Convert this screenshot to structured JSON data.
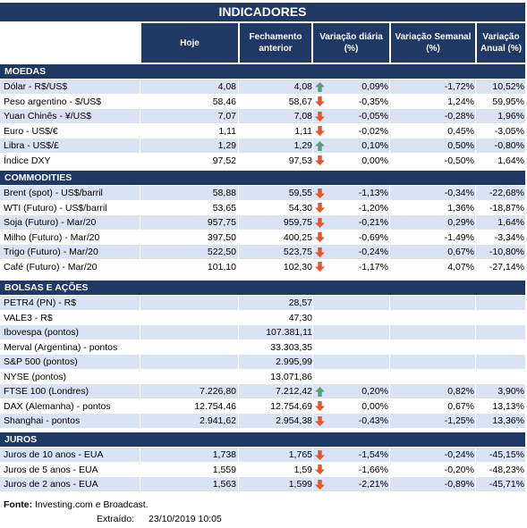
{
  "title": "INDICADORES",
  "headers": {
    "hoje": "Hoje",
    "fech": "Fechamento anterior",
    "dia": "Variação diária (%)",
    "sem": "Variação Semanal (%)",
    "anu": "Variação Anual (%)"
  },
  "sections": {
    "moedas": "MOEDAS",
    "commodities": "COMMODITIES",
    "bolsas": "BOLSAS E AÇÕES",
    "juros": "JUROS"
  },
  "moedas": [
    {
      "name": "Dólar - R$/US$",
      "hoje": "4,08",
      "fech": "4,08",
      "dir": "up",
      "dia": "0,09%",
      "sem": "-1,72%",
      "anu": "10,52%"
    },
    {
      "name": "Peso argentino - $/US$",
      "hoje": "58,46",
      "fech": "58,67",
      "dir": "down",
      "dia": "-0,35%",
      "sem": "1,24%",
      "anu": "59,95%"
    },
    {
      "name": "Yuan Chinês - ¥/US$",
      "hoje": "7,07",
      "fech": "7,08",
      "dir": "down",
      "dia": "-0,05%",
      "sem": "-0,28%",
      "anu": "1,96%"
    },
    {
      "name": "Euro - US$/€",
      "hoje": "1,11",
      "fech": "1,11",
      "dir": "down",
      "dia": "-0,02%",
      "sem": "0,45%",
      "anu": "-3,05%"
    },
    {
      "name": "Libra - US$/£",
      "hoje": "1,29",
      "fech": "1,29",
      "dir": "up",
      "dia": "0,10%",
      "sem": "0,50%",
      "anu": "-0,80%"
    },
    {
      "name": "Índice DXY",
      "hoje": "97,52",
      "fech": "97,53",
      "dir": "down",
      "dia": "0,00%",
      "sem": "-0,50%",
      "anu": "1,64%"
    }
  ],
  "commodities": [
    {
      "name": "Brent (spot) - US$/barril",
      "hoje": "58,88",
      "fech": "59,55",
      "dir": "down",
      "dia": "-1,13%",
      "sem": "-0,34%",
      "anu": "-22,68%"
    },
    {
      "name": "WTI (Futuro) - US$/barril",
      "hoje": "53,65",
      "fech": "54,30",
      "dir": "down",
      "dia": "-1,20%",
      "sem": "1,36%",
      "anu": "-18,87%"
    },
    {
      "name": "Soja (Futuro) - Mar/20",
      "hoje": "957,75",
      "fech": "959,75",
      "dir": "down",
      "dia": "-0,21%",
      "sem": "0,29%",
      "anu": "1,64%"
    },
    {
      "name": "Milho (Futuro) - Mar/20",
      "hoje": "397,50",
      "fech": "400,25",
      "dir": "down",
      "dia": "-0,69%",
      "sem": "-1,49%",
      "anu": "-3,34%"
    },
    {
      "name": "Trigo (Futuro) - Mar/20",
      "hoje": "522,50",
      "fech": "523,75",
      "dir": "down",
      "dia": "-0,24%",
      "sem": "0,67%",
      "anu": "-10,80%"
    },
    {
      "name": "Café (Futuro) - Mar/20",
      "hoje": "101,10",
      "fech": "102,30",
      "dir": "down",
      "dia": "-1,17%",
      "sem": "4,07%",
      "anu": "-27,14%"
    }
  ],
  "bolsas": [
    {
      "name": "PETR4 (PN) - R$",
      "hoje": "",
      "fech": "28,57",
      "dir": "",
      "dia": "",
      "sem": "",
      "anu": ""
    },
    {
      "name": "VALE3 - R$",
      "hoje": "",
      "fech": "47,30",
      "dir": "",
      "dia": "",
      "sem": "",
      "anu": ""
    },
    {
      "name": "Ibovespa (pontos)",
      "hoje": "",
      "fech": "107.381,11",
      "dir": "",
      "dia": "",
      "sem": "",
      "anu": ""
    },
    {
      "name": "Merval (Argentina) - pontos",
      "hoje": "",
      "fech": "33.303,35",
      "dir": "",
      "dia": "",
      "sem": "",
      "anu": ""
    },
    {
      "name": "S&P 500 (pontos)",
      "hoje": "",
      "fech": "2.995,99",
      "dir": "",
      "dia": "",
      "sem": "",
      "anu": ""
    },
    {
      "name": "NYSE (pontos)",
      "hoje": "",
      "fech": "13.071,86",
      "dir": "",
      "dia": "",
      "sem": "",
      "anu": ""
    },
    {
      "name": "FTSE 100 (Londres)",
      "hoje": "7.226,80",
      "fech": "7.212,42",
      "dir": "up",
      "dia": "0,20%",
      "sem": "0,82%",
      "anu": "3,90%"
    },
    {
      "name": "DAX (Alemanha) - pontos",
      "hoje": "12.754,46",
      "fech": "12.754,69",
      "dir": "down",
      "dia": "0,00%",
      "sem": "0,67%",
      "anu": "13,13%"
    },
    {
      "name": "Shanghai - pontos",
      "hoje": "2.941,62",
      "fech": "2.954,38",
      "dir": "down",
      "dia": "-0,43%",
      "sem": "-1,25%",
      "anu": "13,36%"
    }
  ],
  "juros": [
    {
      "name": "Juros de 10 anos - EUA",
      "hoje": "1,738",
      "fech": "1,765",
      "dir": "down",
      "dia": "-1,54%",
      "sem": "-0,24%",
      "anu": "-45,15%"
    },
    {
      "name": "Juros de 5 anos - EUA",
      "hoje": "1,559",
      "fech": "1,59",
      "dir": "down",
      "dia": "-1,66%",
      "sem": "-0,20%",
      "anu": "-48,23%"
    },
    {
      "name": "Juros de 2 anos - EUA",
      "hoje": "1,563",
      "fech": "1,599",
      "dir": "down",
      "dia": "-2,21%",
      "sem": "-0,89%",
      "anu": "-45,71%"
    }
  ],
  "footer": {
    "fonte_label": "Fonte:",
    "fonte_text": " Investing.com e Broadcast.",
    "extraido_label": "Extraído:",
    "extraido_value": "23/10/2019 10:05"
  },
  "colors": {
    "header": "#1f3864",
    "alt_row": "#dae3f3",
    "arrow_up": "#5a9e7c",
    "arrow_down": "#e2572b"
  }
}
